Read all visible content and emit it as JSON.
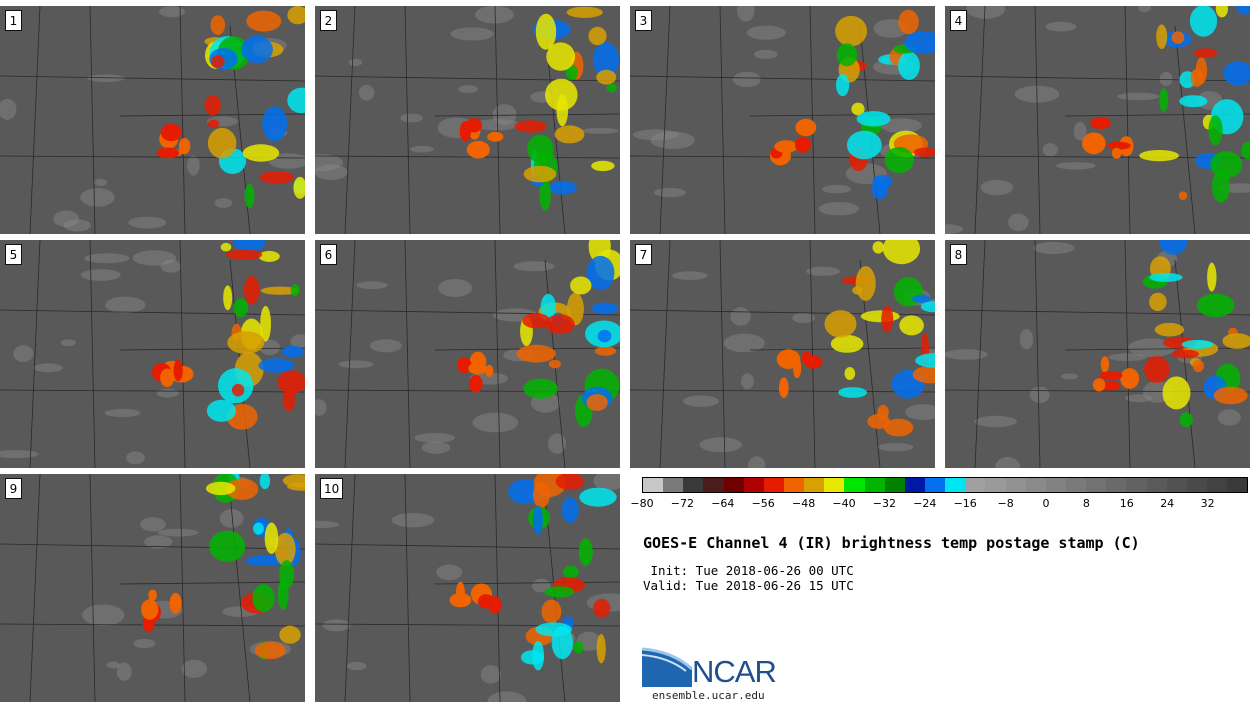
{
  "panels": [
    {
      "id": "1",
      "label": "1"
    },
    {
      "id": "2",
      "label": "2"
    },
    {
      "id": "3",
      "label": "3"
    },
    {
      "id": "4",
      "label": "4"
    },
    {
      "id": "5",
      "label": "5"
    },
    {
      "id": "6",
      "label": "6"
    },
    {
      "id": "7",
      "label": "7"
    },
    {
      "id": "8",
      "label": "8"
    },
    {
      "id": "9",
      "label": "9"
    },
    {
      "id": "10",
      "label": "10"
    }
  ],
  "colorbar": {
    "colors": [
      "#c8c8c8",
      "#7a7a7a",
      "#3a3a3a",
      "#4a1c1c",
      "#6e0000",
      "#b00000",
      "#e61c00",
      "#f06400",
      "#d8a000",
      "#e8e800",
      "#00e600",
      "#00b400",
      "#008200",
      "#0018a8",
      "#0070f0",
      "#00e6f0",
      "#a0a0a0",
      "#9a9a9a",
      "#929292",
      "#8a8a8a",
      "#828282",
      "#7a7a7a",
      "#727272",
      "#6a6a6a",
      "#626262",
      "#5a5a5a",
      "#525252",
      "#4a4a4a",
      "#424242",
      "#3a3a3a"
    ],
    "tick_labels": [
      "−80",
      "−72",
      "−64",
      "−56",
      "−48",
      "−40",
      "−32",
      "−24",
      "−16",
      "−8",
      "0",
      "8",
      "16",
      "24",
      "32"
    ]
  },
  "title": "GOES-E Channel 4 (IR) brightness temp postage stamp (C)",
  "init_line": " Init: Tue 2018-06-26 00 UTC",
  "valid_line": "Valid: Tue 2018-06-26 15 UTC",
  "logo_text": "NCAR",
  "site": "ensemble.ucar.edu"
}
